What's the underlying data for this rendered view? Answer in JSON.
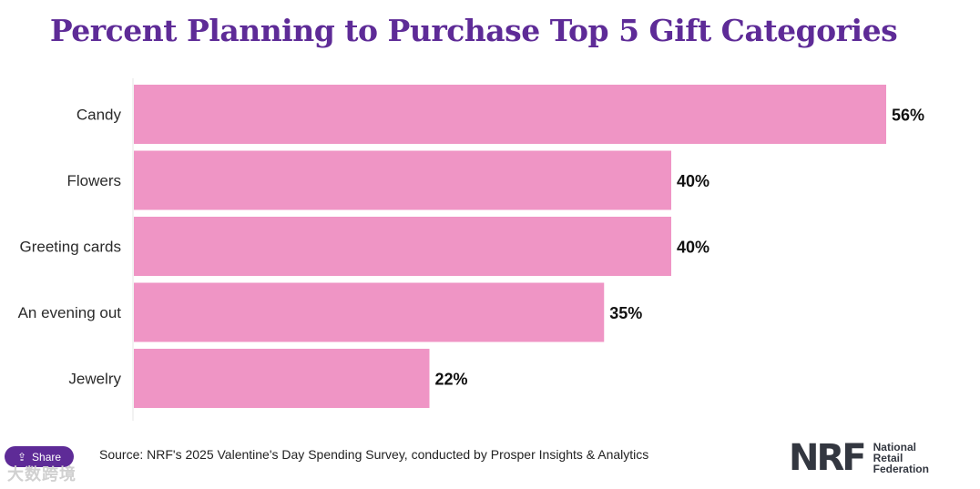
{
  "chart_data": {
    "type": "bar",
    "orientation": "horizontal",
    "title": "Percent Planning to Purchase Top 5 Gift Categories",
    "categories": [
      "Candy",
      "Flowers",
      "Greeting cards",
      "An evening out",
      "Jewelry"
    ],
    "values": [
      56,
      40,
      40,
      35,
      22
    ],
    "value_labels": [
      "56%",
      "40%",
      "40%",
      "35%",
      "22%"
    ],
    "xlim": [
      0,
      56
    ],
    "bar_color": "#ef95c5",
    "grid": false,
    "legend": "none"
  },
  "footer": {
    "share_label": "Share",
    "source": "Source: NRF's 2025 Valentine's Day Spending Survey, conducted by Prosper Insights & Analytics",
    "watermark": "大数跨境"
  },
  "logo": {
    "mark": "NRF",
    "line1": "National",
    "line2": "Retail",
    "line3": "Federation"
  },
  "colors": {
    "title": "#5e2b97",
    "share_bg": "#5e2b97"
  }
}
